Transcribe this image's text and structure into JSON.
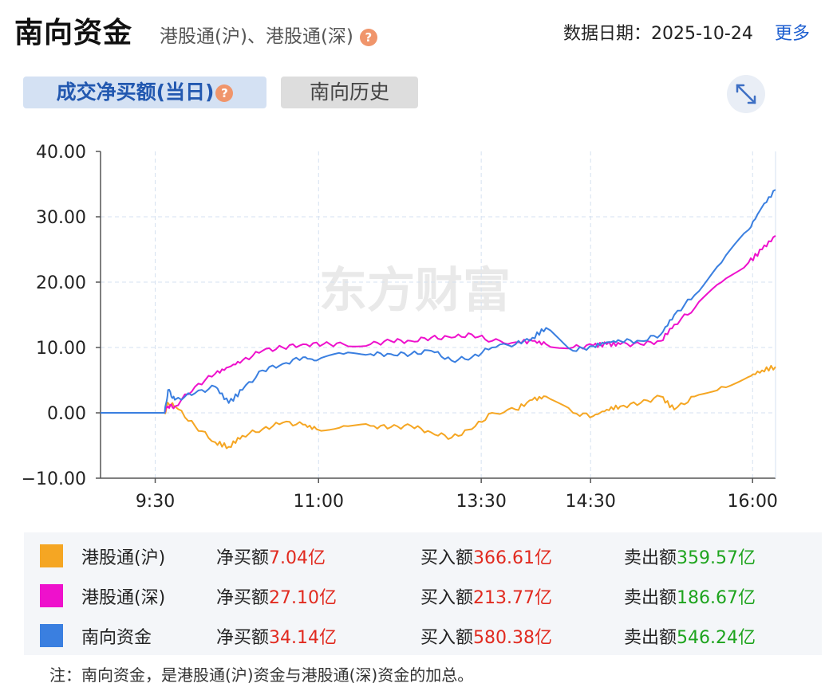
{
  "header": {
    "title": "南向资金",
    "subtitle": "港股通(沪)、港股通(深)",
    "help_icon": "?",
    "date_label": "数据日期：2025-10-24",
    "more_label": "更多"
  },
  "tabs": [
    {
      "label": "成交净买额(当日)",
      "active": true,
      "help_icon": "?"
    },
    {
      "label": "南向历史",
      "active": false
    }
  ],
  "watermark": "东方财富",
  "chart_data": {
    "type": "line",
    "x_ticks": [
      "9:30",
      "11:00",
      "13:30",
      "14:30",
      "16:00"
    ],
    "y_ticks": [
      "40.00",
      "30.00",
      "20.00",
      "10.00",
      "0.00",
      "-10.00"
    ],
    "ylim": [
      -10,
      40
    ],
    "grid": true,
    "series": [
      {
        "name": "港股通(沪)",
        "color": "#f5a623",
        "x": [
          0,
          95,
          100,
          110,
          140,
          170,
          190,
          210,
          240,
          270,
          300,
          320,
          360,
          400,
          430,
          460,
          490,
          520,
          550,
          580,
          615,
          640,
          660,
          700,
          730,
          750,
          770,
          800,
          830,
          850,
          880,
          920,
          960,
          980,
          1000
        ],
        "values": [
          0,
          0,
          1.5,
          1.0,
          -2.0,
          -4.5,
          -5.2,
          -3.5,
          -2.5,
          -1.5,
          -1.8,
          -2.5,
          -2.0,
          -2.0,
          -2.2,
          -2.0,
          -3.0,
          -3.8,
          -2.5,
          0.0,
          0.5,
          2.0,
          2.5,
          0.0,
          -0.5,
          0.5,
          1.0,
          1.5,
          2.5,
          0.5,
          2.5,
          4.0,
          5.5,
          6.5,
          7.04
        ]
      },
      {
        "name": "港股通(深)",
        "color": "#ee11cc",
        "x": [
          0,
          95,
          100,
          110,
          140,
          170,
          190,
          210,
          240,
          270,
          300,
          330,
          360,
          400,
          430,
          460,
          490,
          520,
          550,
          580,
          615,
          640,
          660,
          700,
          730,
          750,
          770,
          800,
          830,
          850,
          880,
          920,
          960,
          980,
          1000
        ],
        "values": [
          0,
          0,
          1.0,
          1.0,
          4.0,
          6.0,
          7.0,
          8.0,
          9.5,
          10.0,
          10.5,
          10.5,
          10.5,
          10.5,
          11.0,
          11.0,
          11.5,
          11.5,
          12.0,
          11.0,
          10.8,
          11.0,
          10.5,
          10.0,
          10.3,
          10.5,
          10.5,
          10.5,
          11.0,
          13.5,
          16.0,
          20.0,
          23.0,
          25.0,
          27.1
        ]
      },
      {
        "name": "南向资金",
        "color": "#3a7fe0",
        "x": [
          0,
          95,
          100,
          110,
          140,
          170,
          190,
          210,
          240,
          270,
          300,
          320,
          360,
          400,
          430,
          460,
          490,
          520,
          550,
          580,
          615,
          640,
          660,
          700,
          730,
          750,
          770,
          800,
          830,
          850,
          880,
          920,
          960,
          980,
          1000
        ],
        "values": [
          0,
          0,
          3.5,
          2.0,
          3.0,
          4.0,
          1.5,
          3.5,
          6.5,
          7.5,
          8.5,
          8.0,
          9.0,
          9.0,
          9.0,
          9.0,
          9.5,
          8.0,
          8.5,
          10.0,
          10.5,
          11.5,
          13.0,
          9.5,
          10.2,
          10.8,
          11.0,
          11.0,
          12.0,
          15.0,
          18.0,
          23.0,
          28.0,
          31.5,
          34.14
        ]
      }
    ]
  },
  "legend": [
    {
      "name": "港股通(沪)",
      "color": "#f5a623",
      "net_label": "净买额",
      "net": "7.04亿",
      "buy_label": "买入额",
      "buy": "366.61亿",
      "sell_label": "卖出额",
      "sell": "359.57亿"
    },
    {
      "name": "港股通(深)",
      "color": "#ee11cc",
      "net_label": "净买额",
      "net": "27.10亿",
      "buy_label": "买入额",
      "buy": "213.77亿",
      "sell_label": "卖出额",
      "sell": "186.67亿"
    },
    {
      "name": "南向资金",
      "color": "#3a7fe0",
      "net_label": "净买额",
      "net": "34.14亿",
      "buy_label": "买入额",
      "buy": "580.38亿",
      "sell_label": "卖出额",
      "sell": "546.24亿"
    }
  ],
  "note": "注：南向资金，是港股通(沪)资金与港股通(深)资金的加总。"
}
